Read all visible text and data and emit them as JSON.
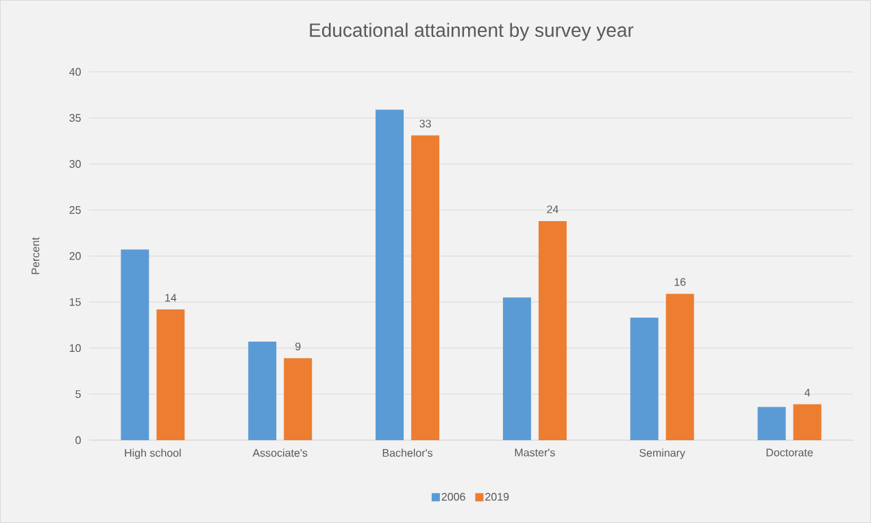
{
  "chart_data": {
    "type": "bar",
    "title": "Educational attainment by survey year",
    "ylabel": "Percent",
    "categories": [
      "High school",
      "Associate's",
      "Bachelor's",
      "Master's",
      "Seminary",
      "Doctorate"
    ],
    "series": [
      {
        "name": "2006",
        "color": "#5b9bd5",
        "values": [
          20.7,
          10.7,
          35.9,
          15.5,
          13.3,
          3.6
        ]
      },
      {
        "name": "2019",
        "color": "#ed7d31",
        "values": [
          14.2,
          8.9,
          33.1,
          23.8,
          15.9,
          3.9
        ],
        "value_labels": [
          "14",
          "9",
          "33",
          "24",
          "16",
          "4"
        ]
      }
    ],
    "ylim": [
      0,
      40
    ],
    "yticks": [
      0,
      5,
      10,
      15,
      20,
      25,
      30,
      35,
      40
    ],
    "grid": "y",
    "legend": "bottom"
  }
}
